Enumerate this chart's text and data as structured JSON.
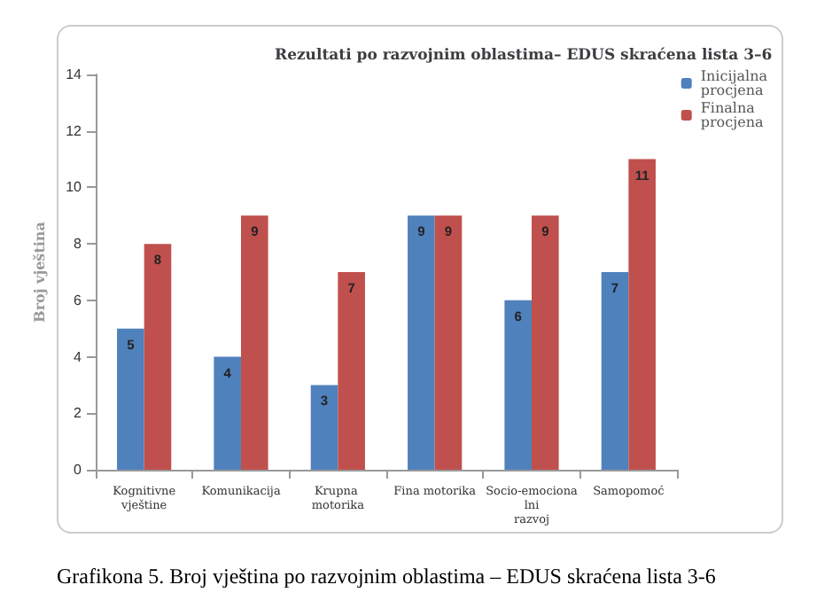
{
  "chart_data": {
    "type": "bar",
    "title": "Rezultati po razvojnim oblastima– EDUS skraćena lista 3–6",
    "ylabel": "Broj vještina",
    "categories": [
      "Kognitivne\nvještine",
      "Komunikacija",
      "Krupna motorika",
      "Fina motorika",
      "Socio-emocionalni\nrazvoj",
      "Samopomoć"
    ],
    "series": [
      {
        "name": "Inicijalna\nprocjena",
        "color": "#4f81bd",
        "values": [
          5,
          4,
          3,
          9,
          6,
          7
        ]
      },
      {
        "name": "Finalna\nprocjena",
        "color": "#c0504d",
        "values": [
          8,
          9,
          7,
          9,
          9,
          11
        ]
      }
    ],
    "ylim": [
      0,
      14
    ],
    "yticks": [
      0,
      2,
      4,
      6,
      8,
      10,
      12,
      14
    ],
    "grid": false,
    "legend": "top right",
    "data_labels": true,
    "annotations": [
      "Grafikona 5. Broj vještina po razvojnim oblastima – EDUS skraćena lista 3-6"
    ]
  }
}
